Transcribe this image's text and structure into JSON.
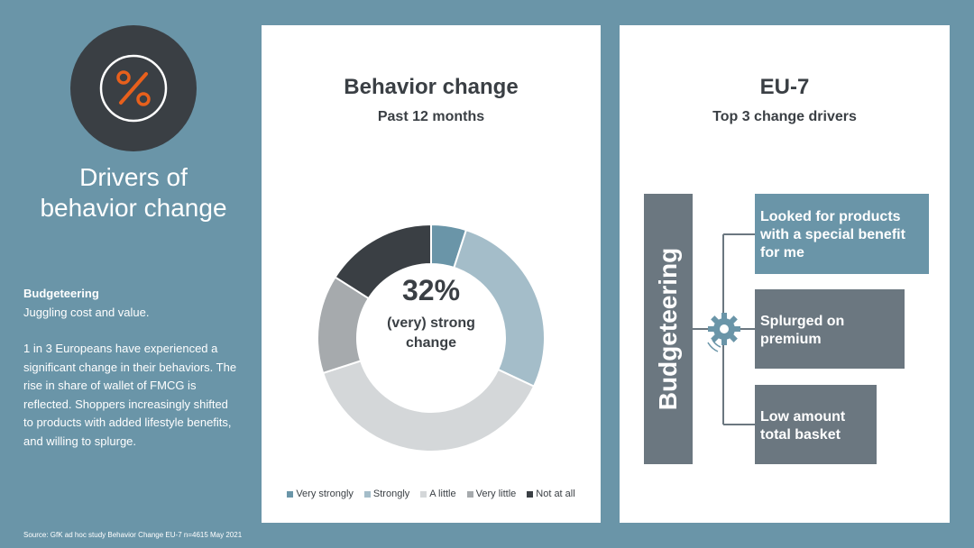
{
  "left": {
    "icon": "percent-icon",
    "title_line1": "Drivers of",
    "title_line2": "behavior change",
    "body_heading": "Budgeteering",
    "body_sub": "Juggling cost and value.",
    "body_text": "1 in 3 Europeans have experienced a significant change in their behaviors. The rise in share of wallet of FMCG is reflected. Shoppers increasingly shifted to products with added lifestyle benefits, and willing to splurge.",
    "source": "Source: GfK ad hoc study Behavior Change EU-7 n=4615 May 2021"
  },
  "middle": {
    "title": "Behavior change",
    "subtitle": "Past 12 months"
  },
  "chart_data": {
    "type": "pie",
    "title": "Behavior change",
    "subtitle": "Past 12 months",
    "center_value": "32%",
    "center_label_line1": "(very) strong",
    "center_label_line2": "change",
    "legend_position": "bottom",
    "slices": [
      {
        "name": "Very strongly",
        "value": 5,
        "color": "#6a95a8"
      },
      {
        "name": "Strongly",
        "value": 27,
        "color": "#a4bdc9"
      },
      {
        "name": "A little",
        "value": 38,
        "color": "#d4d7d9"
      },
      {
        "name": "Very little",
        "value": 14,
        "color": "#a6aaad"
      },
      {
        "name": "Not at all",
        "value": 16,
        "color": "#3a3f44"
      }
    ]
  },
  "right": {
    "title": "EU-7",
    "subtitle": "Top 3 change drivers",
    "category": "Budgeteering",
    "center_icon": "gear-icon",
    "drivers": [
      {
        "line1": "Looked for products",
        "line2": "with a special benefit",
        "line3": "for me"
      },
      {
        "line1": "Splurged on",
        "line2": "premium"
      },
      {
        "line1": "Low amount",
        "line2": "total basket"
      }
    ]
  },
  "colors": {
    "background": "#6a95a8",
    "dark": "#3a3f44",
    "gray_box": "#6b7780",
    "accent_orange": "#e8601c"
  }
}
